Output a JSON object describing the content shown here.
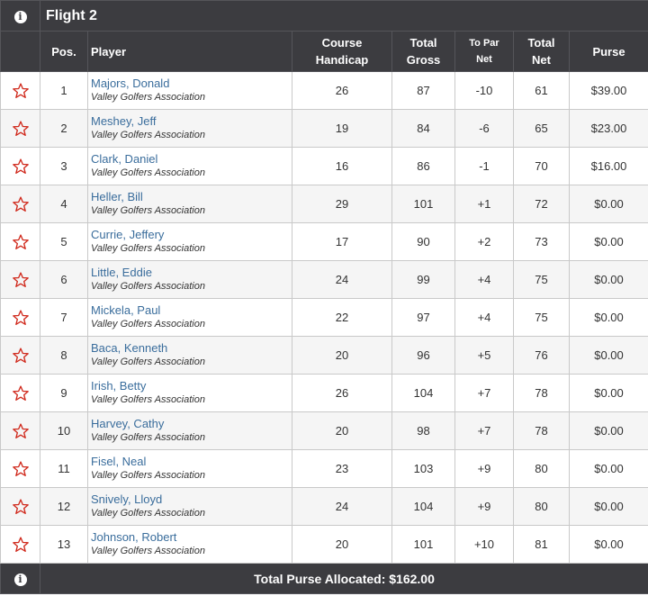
{
  "flight": {
    "title": "Flight 2"
  },
  "columns": {
    "pos": "Pos.",
    "player": "Player",
    "course_handicap": [
      "Course",
      "Handicap"
    ],
    "total_gross": [
      "Total",
      "Gross"
    ],
    "to_par_net": [
      "To Par",
      "Net"
    ],
    "total_net": [
      "Total",
      "Net"
    ],
    "purse": "Purse"
  },
  "rows": [
    {
      "pos": "1",
      "name": "Majors, Donald",
      "club": "Valley Golfers Association",
      "handicap": "26",
      "gross": "87",
      "to_par": "-10",
      "net": "61",
      "purse": "$39.00"
    },
    {
      "pos": "2",
      "name": "Meshey, Jeff",
      "club": "Valley Golfers Association",
      "handicap": "19",
      "gross": "84",
      "to_par": "-6",
      "net": "65",
      "purse": "$23.00"
    },
    {
      "pos": "3",
      "name": "Clark, Daniel",
      "club": "Valley Golfers Association",
      "handicap": "16",
      "gross": "86",
      "to_par": "-1",
      "net": "70",
      "purse": "$16.00"
    },
    {
      "pos": "4",
      "name": "Heller, Bill",
      "club": "Valley Golfers Association",
      "handicap": "29",
      "gross": "101",
      "to_par": "+1",
      "net": "72",
      "purse": "$0.00"
    },
    {
      "pos": "5",
      "name": "Currie, Jeffery",
      "club": "Valley Golfers Association",
      "handicap": "17",
      "gross": "90",
      "to_par": "+2",
      "net": "73",
      "purse": "$0.00"
    },
    {
      "pos": "6",
      "name": "Little, Eddie",
      "club": "Valley Golfers Association",
      "handicap": "24",
      "gross": "99",
      "to_par": "+4",
      "net": "75",
      "purse": "$0.00"
    },
    {
      "pos": "7",
      "name": "Mickela, Paul",
      "club": "Valley Golfers Association",
      "handicap": "22",
      "gross": "97",
      "to_par": "+4",
      "net": "75",
      "purse": "$0.00"
    },
    {
      "pos": "8",
      "name": "Baca, Kenneth",
      "club": "Valley Golfers Association",
      "handicap": "20",
      "gross": "96",
      "to_par": "+5",
      "net": "76",
      "purse": "$0.00"
    },
    {
      "pos": "9",
      "name": "Irish, Betty",
      "club": "Valley Golfers Association",
      "handicap": "26",
      "gross": "104",
      "to_par": "+7",
      "net": "78",
      "purse": "$0.00"
    },
    {
      "pos": "10",
      "name": "Harvey, Cathy",
      "club": "Valley Golfers Association",
      "handicap": "20",
      "gross": "98",
      "to_par": "+7",
      "net": "78",
      "purse": "$0.00"
    },
    {
      "pos": "11",
      "name": "Fisel, Neal",
      "club": "Valley Golfers Association",
      "handicap": "23",
      "gross": "103",
      "to_par": "+9",
      "net": "80",
      "purse": "$0.00"
    },
    {
      "pos": "12",
      "name": "Snively, Lloyd",
      "club": "Valley Golfers Association",
      "handicap": "24",
      "gross": "104",
      "to_par": "+9",
      "net": "80",
      "purse": "$0.00"
    },
    {
      "pos": "13",
      "name": "Johnson, Robert",
      "club": "Valley Golfers Association",
      "handicap": "20",
      "gross": "101",
      "to_par": "+10",
      "net": "81",
      "purse": "$0.00"
    }
  ],
  "footer": {
    "total_purse": "Total Purse Allocated: $162.00"
  },
  "icons": {
    "info": "info-icon",
    "favorite": "star-outline-icon"
  },
  "colors": {
    "header_bg": "#3c3c40",
    "player_link": "#3a6d9c",
    "under_par": "#d0291c",
    "over_par": "#7a2fa8",
    "star": "#d0291c"
  }
}
